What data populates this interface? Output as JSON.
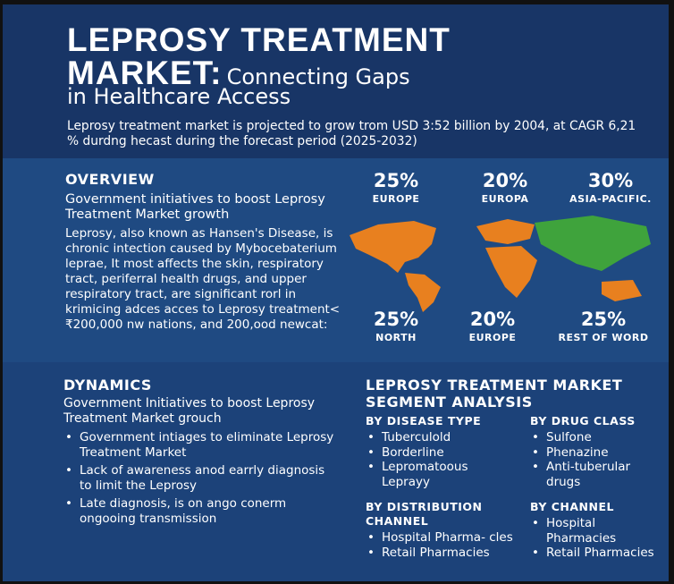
{
  "header": {
    "title_line1": "LEPROSY TREATMENT",
    "title_bold": "MARKET:",
    "title_rest": "Connecting Gaps",
    "title_line3": "in Healthcare Access",
    "subtitle": "Leprosy treatment market is projected to grow trom USD 3:52 billion by 2004, at CAGR 6,21 % durdng hecast during the forecast period (2025-2032)"
  },
  "overview": {
    "heading": "OVERVIEW",
    "lead": "Government initiatives to boost Leprosy Treatment Market growth",
    "body": "Leprosy, also known as Hansen's Disease, is chronic intection caused by Mybocebaterium leprae, It most affects the skin, respiratory tract, periferral health drugs, and upper respiratory tract, are significant rorl in krimicing adces acces to Leprosy treatment< ₹200,000 nw nations, and 200,ood newcat:"
  },
  "stats_top": [
    {
      "value": "25%",
      "label": "EUROPE"
    },
    {
      "value": "20%",
      "label": "EUROPA"
    },
    {
      "value": "30%",
      "label": "ASIA-PACIFIC."
    }
  ],
  "stats_bottom": [
    {
      "value": "25%",
      "label": "NORTH"
    },
    {
      "value": "20%",
      "label": "EUROPE"
    },
    {
      "value": "25%",
      "label": "REST OF WORD"
    }
  ],
  "dynamics": {
    "heading": "DYNAMICS",
    "lead": "Government Initiatives to boost Leprosy Treatment Market grouch",
    "bullets": [
      "Government intiages to eliminate Leprosy Treatment Market",
      "Lack of awareness anod earrly diagnosis to limit the Leprosy",
      "Late diagnosis, is on ango conerm ongooing transmission"
    ]
  },
  "segment": {
    "heading": "LEPROSY TREATMENT MARKET SEGMENT ANALYSIS",
    "groups": [
      {
        "title": "BY DISEASE TYPE",
        "items": [
          "Tuberculold",
          "Borderline",
          "Lepromatoous Leprayy"
        ]
      },
      {
        "title": "BY DRUG CLASS",
        "items": [
          "Sulfone",
          "Phenazine",
          "Anti-tuberular drugs"
        ]
      },
      {
        "title": "BY DISTRIBUTION CHANNEL",
        "items": [
          "Hospital Pharma- cles",
          "Retail Pharmacies"
        ]
      },
      {
        "title": "BY CHANNEL",
        "items": [
          "Hospital Pharmacies",
          "Retail Pharmacies"
        ]
      }
    ]
  }
}
